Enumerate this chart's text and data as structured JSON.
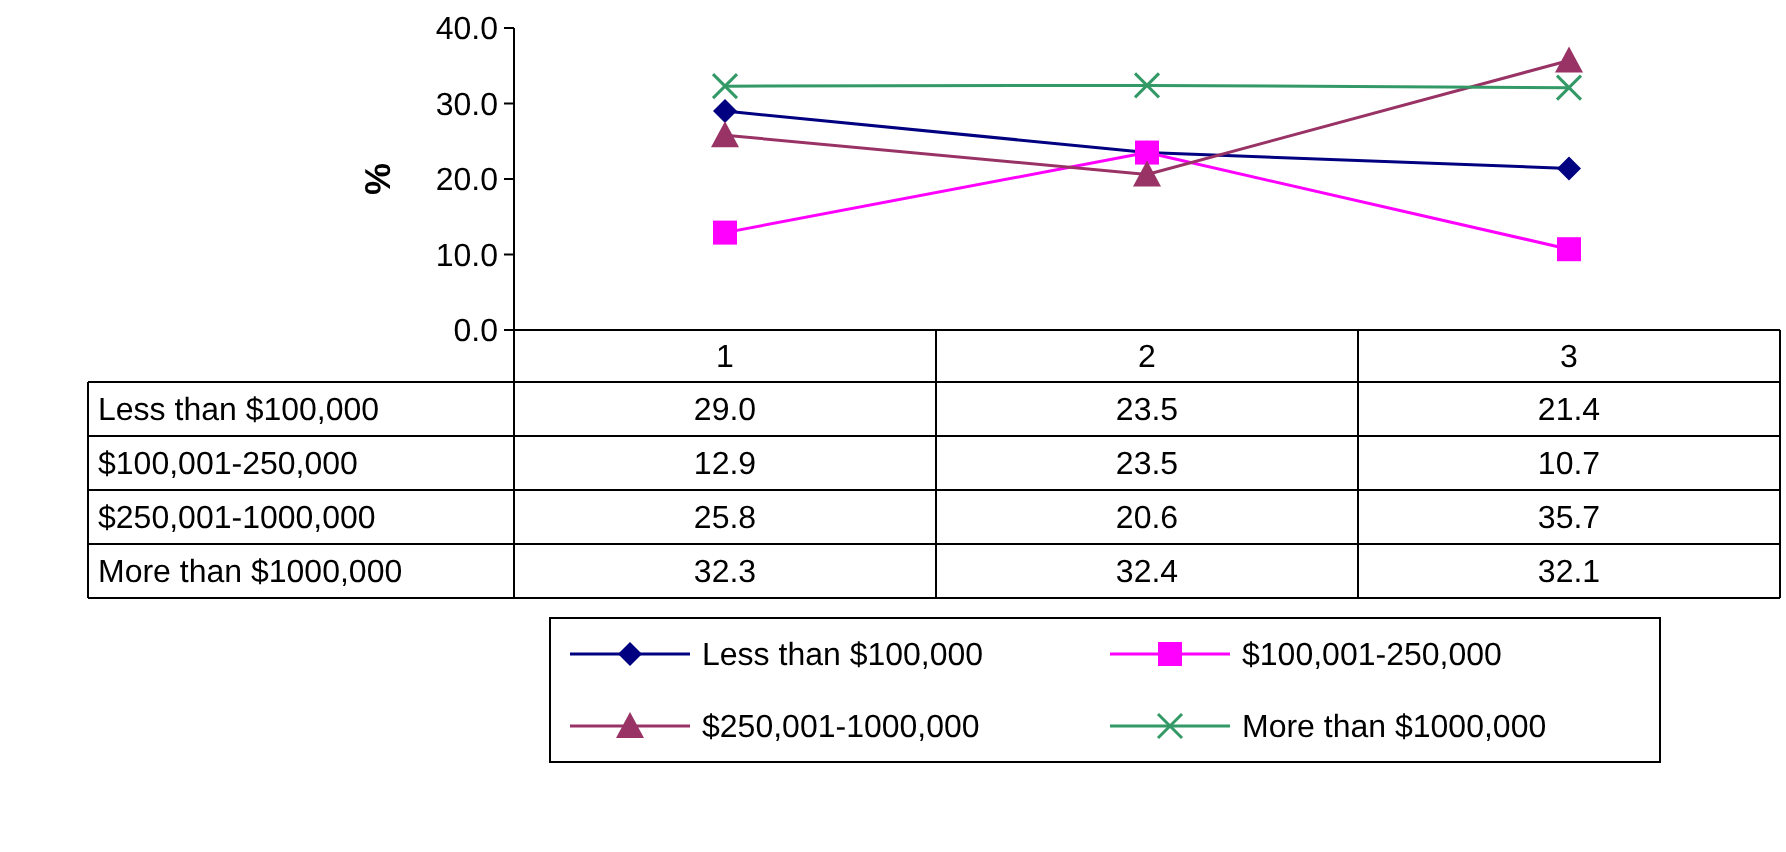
{
  "chart_data": {
    "type": "line",
    "ylabel": "%",
    "categories": [
      "1",
      "2",
      "3"
    ],
    "series": [
      {
        "name": "Less than $100,000",
        "color": "#000080",
        "marker": "diamond",
        "values": [
          29.0,
          23.5,
          21.4
        ],
        "value_labels": [
          "29.0",
          "23.5",
          "21.4"
        ]
      },
      {
        "name": "$100,001-250,000",
        "color": "#ff00ff",
        "marker": "square",
        "values": [
          12.9,
          23.5,
          10.7
        ],
        "value_labels": [
          "12.9",
          "23.5",
          "10.7"
        ]
      },
      {
        "name": "$250,001-1000,000",
        "color": "#993366",
        "marker": "triangle",
        "values": [
          25.8,
          20.6,
          35.7
        ],
        "value_labels": [
          "25.8",
          "20.6",
          "35.7"
        ]
      },
      {
        "name": "More than $1000,000",
        "color": "#339966",
        "marker": "cross",
        "values": [
          32.3,
          32.4,
          32.1
        ],
        "value_labels": [
          "32.3",
          "32.4",
          "32.1"
        ]
      }
    ],
    "ylim": [
      0,
      40
    ],
    "yticks": [
      {
        "value": 0,
        "label": "0.0"
      },
      {
        "value": 10,
        "label": "10.0"
      },
      {
        "value": 20,
        "label": "20.0"
      },
      {
        "value": 30,
        "label": "30.0"
      },
      {
        "value": 40,
        "label": "40.0"
      }
    ],
    "grid": false,
    "legend": "bottom"
  }
}
